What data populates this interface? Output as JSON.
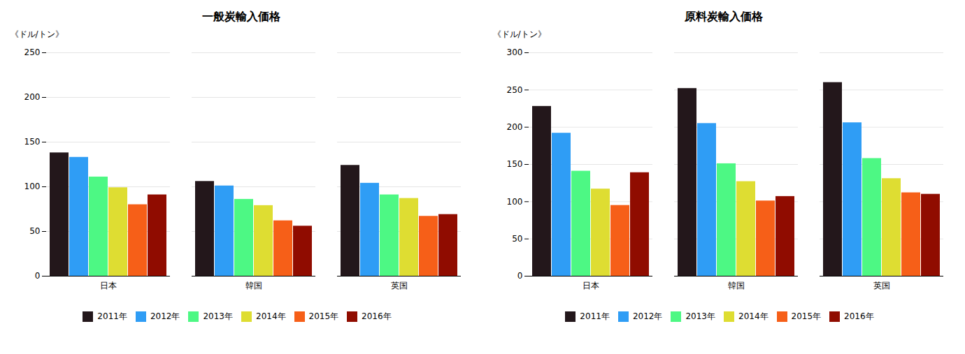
{
  "chart_data": [
    {
      "type": "bar",
      "title": "一般炭輸入価格",
      "ylabel": "《ドル/トン》",
      "categories": [
        "日本",
        "韓国",
        "英国"
      ],
      "series": [
        {
          "name": "2011年",
          "values": [
            138,
            106,
            124
          ]
        },
        {
          "name": "2012年",
          "values": [
            133,
            101,
            104
          ]
        },
        {
          "name": "2013年",
          "values": [
            111,
            86,
            91
          ]
        },
        {
          "name": "2014年",
          "values": [
            99,
            79,
            87
          ]
        },
        {
          "name": "2015年",
          "values": [
            80,
            62,
            67
          ]
        },
        {
          "name": "2016年",
          "values": [
            91,
            56,
            69
          ]
        }
      ],
      "ylim": [
        0,
        250
      ],
      "yticks": [
        0,
        50,
        100,
        150,
        200,
        250
      ],
      "grid": true,
      "legend": "bottom"
    },
    {
      "type": "bar",
      "title": "原料炭輸入価格",
      "ylabel": "《ドル/トン》",
      "categories": [
        "日本",
        "韓国",
        "英国"
      ],
      "series": [
        {
          "name": "2011年",
          "values": [
            228,
            252,
            260
          ]
        },
        {
          "name": "2012年",
          "values": [
            192,
            205,
            206
          ]
        },
        {
          "name": "2013年",
          "values": [
            141,
            151,
            158
          ]
        },
        {
          "name": "2014年",
          "values": [
            117,
            127,
            131
          ]
        },
        {
          "name": "2015年",
          "values": [
            95,
            101,
            112
          ]
        },
        {
          "name": "2016年",
          "values": [
            139,
            107,
            110
          ]
        }
      ],
      "ylim": [
        0,
        300
      ],
      "yticks": [
        0,
        50,
        100,
        150,
        200,
        250,
        300
      ],
      "grid": true,
      "legend": "bottom"
    }
  ]
}
